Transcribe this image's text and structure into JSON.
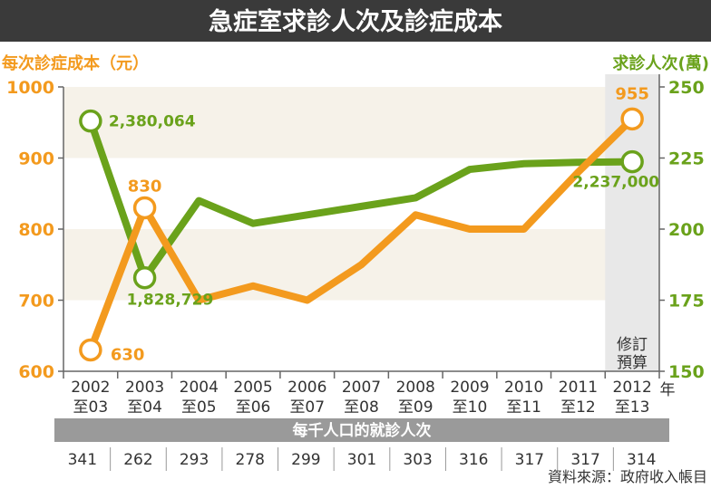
{
  "title": "急症室求診人次及診症成本",
  "colors": {
    "cost": "#f39a1e",
    "visits": "#6aa21b",
    "band": "#f6f2e9",
    "budget_band": "#e8e8e8",
    "title_bg": "#3a3a3a"
  },
  "chart_data": {
    "type": "line",
    "title": "急症室求診人次及診症成本",
    "categories": [
      {
        "year": "2002",
        "sub": "至03"
      },
      {
        "year": "2003",
        "sub": "至04"
      },
      {
        "year": "2004",
        "sub": "至05"
      },
      {
        "year": "2005",
        "sub": "至06"
      },
      {
        "year": "2006",
        "sub": "至07"
      },
      {
        "year": "2007",
        "sub": "至08"
      },
      {
        "year": "2008",
        "sub": "至09"
      },
      {
        "year": "2009",
        "sub": "至10"
      },
      {
        "year": "2010",
        "sub": "至11"
      },
      {
        "year": "2011",
        "sub": "至12"
      },
      {
        "year": "2012",
        "sub": "至13"
      }
    ],
    "x_unit": "年",
    "left_axis": {
      "label": "每次診症成本（元）",
      "min": 600,
      "max": 1000,
      "ticks": [
        "600",
        "700",
        "800",
        "900",
        "1000"
      ]
    },
    "right_axis": {
      "label": "求診人次(萬)",
      "min": 150,
      "max": 250,
      "ticks": [
        "150",
        "175",
        "200",
        "225",
        "250"
      ]
    },
    "series": [
      {
        "name": "每次診症成本（元）",
        "axis": "left",
        "values": [
          630,
          830,
          700,
          720,
          700,
          750,
          820,
          800,
          800,
          880,
          955
        ]
      },
      {
        "name": "求診人次(萬)",
        "axis": "right",
        "values": [
          238.0,
          182.9,
          210,
          202,
          205,
          208,
          211,
          221,
          223,
          223.5,
          223.7
        ]
      }
    ],
    "annotations": {
      "cost_first": "630",
      "cost_peak": "830",
      "cost_last": "955",
      "visits_first": "2,380,064",
      "visits_low": "1,828,729",
      "visits_last": "2,237,000"
    },
    "budget_label": [
      "修訂",
      "預算"
    ],
    "table": {
      "header": "每千人口的就診人次",
      "values": [
        "341",
        "262",
        "293",
        "278",
        "299",
        "301",
        "303",
        "316",
        "317",
        "317",
        "314"
      ]
    },
    "source": "資料來源：政府收入帳目"
  }
}
